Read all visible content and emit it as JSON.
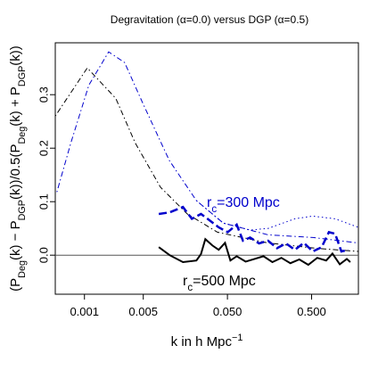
{
  "chart_data": {
    "type": "line",
    "title": "Degravitation (α=0.0) versus DGP (α=0.5)",
    "xlabel": [
      "k in h Mpc",
      "−1"
    ],
    "ylabel": [
      "(P",
      "Deg",
      "(k) − P",
      "DGP",
      "(k))/0.5(P",
      "Deg",
      "(k) + P",
      "DGP",
      "(k))"
    ],
    "xlog": true,
    "xlim": [
      0.00045,
      1.8
    ],
    "ylim": [
      -0.073,
      0.397
    ],
    "xticks": [
      0.001,
      0.005,
      {
        "value": 0.05,
        "label": "0.050"
      },
      {
        "value": 0.5,
        "label": "0.500"
      }
    ],
    "yticks": [
      {
        "value": 0,
        "label": "0.0"
      },
      0.1,
      0.2,
      0.3
    ],
    "hline": 0,
    "annotations": [
      {
        "text": [
          "r",
          "c",
          "=300 Mpc"
        ],
        "color": "#0000cc"
      },
      {
        "text": [
          "r",
          "c",
          "=500 Mpc"
        ],
        "color": "#000000"
      }
    ],
    "series": [
      {
        "color": "#000000",
        "style": "dotdash",
        "width": 1,
        "x": [
          0.00045,
          0.00108,
          0.00236,
          0.004,
          0.008,
          0.0167,
          0.038,
          0.15,
          0.55,
          1.8
        ],
        "values": [
          0.26,
          0.35,
          0.293,
          0.21,
          0.127,
          0.077,
          0.043,
          0.023,
          0.013,
          0.007
        ]
      },
      {
        "color": "#0000cc",
        "style": "dotdash",
        "width": 1,
        "x": [
          0.00047,
          0.00069,
          0.00113,
          0.00194,
          0.003,
          0.0049,
          0.0102,
          0.0214,
          0.0446,
          0.152,
          0.52,
          1.75
        ],
        "values": [
          0.118,
          0.21,
          0.318,
          0.38,
          0.36,
          0.285,
          0.177,
          0.102,
          0.06,
          0.038,
          0.033,
          0.023
        ]
      },
      {
        "color": "#0000cc",
        "style": "dotted",
        "width": 1,
        "x": [
          0.0214,
          0.0446,
          0.0929,
          0.152,
          0.316,
          0.516,
          0.952,
          1.8
        ],
        "values": [
          0.102,
          0.06,
          0.047,
          0.05,
          0.068,
          0.073,
          0.068,
          0.052
        ]
      },
      {
        "color": "#0000cc",
        "style": "dashed",
        "width": 2.5,
        "x": [
          0.00764,
          0.0103,
          0.0148,
          0.0189,
          0.0242,
          0.0308,
          0.0394,
          0.0504,
          0.0644,
          0.0764,
          0.0929,
          0.119,
          0.152,
          0.194,
          0.248,
          0.316,
          0.404,
          0.516,
          0.659,
          0.802,
          0.952,
          1.13,
          1.37
        ],
        "values": [
          0.077,
          0.08,
          0.09,
          0.068,
          0.077,
          0.065,
          0.052,
          0.043,
          0.057,
          0.027,
          0.033,
          0.022,
          0.027,
          0.013,
          0.022,
          0.01,
          0.023,
          0.007,
          0.015,
          0.043,
          0.04,
          0.007,
          0.01
        ]
      },
      {
        "color": "#000000",
        "style": "solid",
        "width": 2,
        "x": [
          0.00764,
          0.0103,
          0.0148,
          0.0214,
          0.0242,
          0.0273,
          0.0332,
          0.0394,
          0.0468,
          0.0542,
          0.0644,
          0.0822,
          0.105,
          0.134,
          0.171,
          0.219,
          0.28,
          0.357,
          0.457,
          0.583,
          0.745,
          0.885,
          1.08,
          1.31,
          1.44
        ],
        "values": [
          0.015,
          0,
          -0.013,
          -0.01,
          0.002,
          0.03,
          0.018,
          0.01,
          0.023,
          -0.01,
          -0.002,
          -0.012,
          -0.007,
          -0.002,
          -0.013,
          -0.005,
          -0.015,
          -0.008,
          -0.018,
          -0.005,
          -0.01,
          0.003,
          -0.017,
          -0.007,
          -0.013
        ]
      }
    ]
  }
}
